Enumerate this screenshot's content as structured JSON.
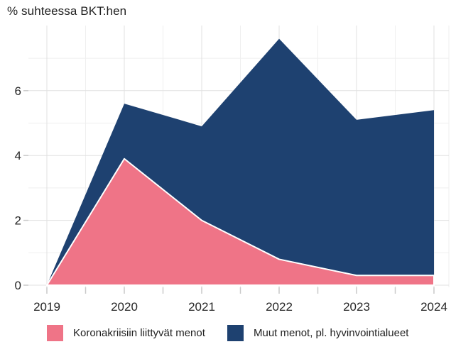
{
  "title": "% suhteessa BKT:hen",
  "legend": {
    "items": [
      {
        "label": "Koronakriisiin liittyvät menot",
        "color": "#ef7487"
      },
      {
        "label": "Muut menot, pl. hyvinvointialueet",
        "color": "#1e4170"
      }
    ]
  },
  "chart_data": {
    "type": "area",
    "stacked": true,
    "title": "% suhteessa BKT:hen",
    "ylabel": "% suhteessa BKT:hen",
    "xlabel": "",
    "x": [
      2019,
      2020,
      2021,
      2022,
      2023,
      2024
    ],
    "series": [
      {
        "name": "Koronakriisiin liittyvät menot",
        "color": "#ef7487",
        "values": [
          0,
          3.9,
          2.0,
          0.8,
          0.3,
          0.3
        ]
      },
      {
        "name": "Muut menot, pl. hyvinvointialueet",
        "color": "#1e4170",
        "values": [
          0,
          1.7,
          2.9,
          6.8,
          4.8,
          5.1
        ]
      }
    ],
    "stack_totals": [
      0,
      5.6,
      4.9,
      7.6,
      5.1,
      5.4
    ],
    "xlim": [
      2019,
      2024
    ],
    "ylim": [
      0,
      8
    ],
    "yticks_major": [
      0,
      2,
      4,
      6
    ],
    "yticks_minor": [
      1,
      3,
      5,
      7
    ],
    "xticks_major": [
      2019,
      2020,
      2021,
      2022,
      2023,
      2024
    ],
    "xticks_minor": [
      2019.5,
      2020.5,
      2021.5,
      2022.5,
      2023.5
    ],
    "grid": "major+minor",
    "legend_position": "bottom",
    "colors": {
      "grid_major": "#e0e0e0",
      "grid_minor": "#efefef",
      "tick": "#c9c9c9",
      "axis_label": "#262626",
      "background": "#ffffff",
      "area_outline": "#ffffff"
    }
  }
}
